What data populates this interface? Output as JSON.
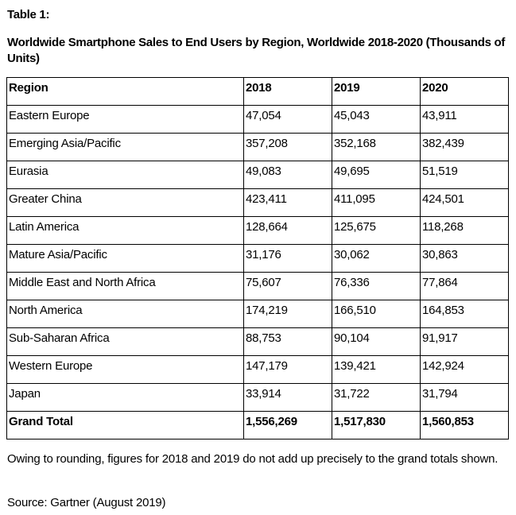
{
  "document": {
    "label": "Table 1:",
    "title": "Worldwide Smartphone Sales to End Users by Region, Worldwide 2018-2020 (Thousands of Units)",
    "note": "Owing to rounding, figures for 2018 and 2019 do not add up precisely to the grand totals shown.",
    "source": "Source: Gartner (August 2019)"
  },
  "table": {
    "headers": [
      "Region",
      "2018",
      "2019",
      "2020"
    ],
    "rows": [
      [
        "Eastern Europe",
        "47,054",
        "45,043",
        "43,911"
      ],
      [
        "Emerging Asia/Pacific",
        "357,208",
        "352,168",
        "382,439"
      ],
      [
        "Eurasia",
        "49,083",
        "49,695",
        "51,519"
      ],
      [
        "Greater China",
        "423,411",
        "411,095",
        "424,501"
      ],
      [
        "Latin America",
        "128,664",
        "125,675",
        "118,268"
      ],
      [
        "Mature Asia/Pacific",
        "31,176",
        "30,062",
        "30,863"
      ],
      [
        "Middle East and North Africa",
        "75,607",
        "76,336",
        "77,864"
      ],
      [
        "North America",
        "174,219",
        "166,510",
        "164,853"
      ],
      [
        "Sub-Saharan Africa",
        "88,753",
        "90,104",
        "91,917"
      ],
      [
        "Western Europe",
        "147,179",
        "139,421",
        "142,924"
      ],
      [
        "Japan",
        "33,914",
        "31,722",
        "31,794"
      ]
    ],
    "total": [
      "Grand Total",
      "1,556,269",
      "1,517,830",
      "1,560,853"
    ]
  }
}
